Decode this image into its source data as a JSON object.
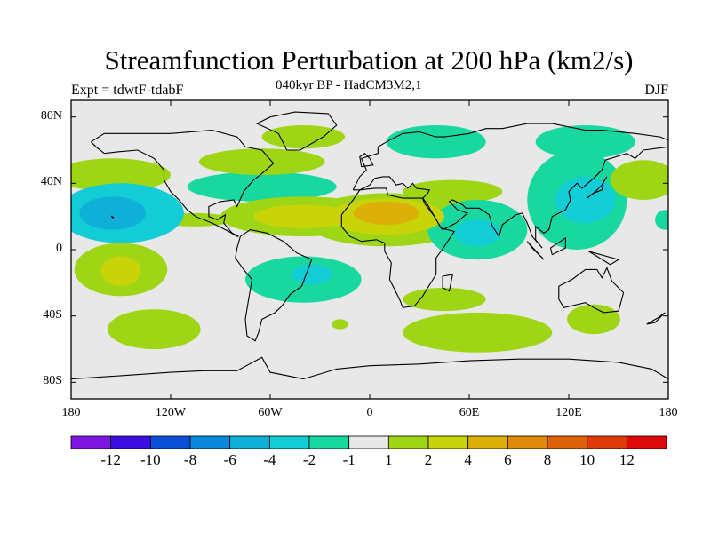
{
  "chart_data": {
    "type": "heatmap",
    "title": "Streamfunction Perturbation at 200 hPa (km2/s)",
    "subtitle": "040kyr BP - HadCM3M2,1",
    "left_label": "Expt = tdwtF-tdabF",
    "right_label": "DJF",
    "x_axis": {
      "range": [
        -180,
        180
      ],
      "ticks": [
        {
          "value": -180,
          "label": "180"
        },
        {
          "value": -120,
          "label": "120W"
        },
        {
          "value": -60,
          "label": "60W"
        },
        {
          "value": 0,
          "label": "0"
        },
        {
          "value": 60,
          "label": "60E"
        },
        {
          "value": 120,
          "label": "120E"
        },
        {
          "value": 180,
          "label": "180"
        }
      ]
    },
    "y_axis": {
      "range": [
        -90,
        90
      ],
      "ticks": [
        {
          "value": 80,
          "label": "80N"
        },
        {
          "value": 40,
          "label": "40N"
        },
        {
          "value": 0,
          "label": "0"
        },
        {
          "value": -40,
          "label": "40S"
        },
        {
          "value": -80,
          "label": "80S"
        }
      ]
    },
    "colorbar": {
      "colors": [
        "#7d16e0",
        "#3a0fe0",
        "#0a4fd6",
        "#0b87db",
        "#0fb0d8",
        "#12ccd6",
        "#18d8a0",
        "#e8e8e8",
        "#9ed615",
        "#c8d408",
        "#dcb008",
        "#de8a0a",
        "#de620a",
        "#de3a0a",
        "#de0a0a"
      ],
      "labels": [
        "-12",
        "-10",
        "-8",
        "-6",
        "-4",
        "-2",
        "-1",
        "1",
        "2",
        "4",
        "6",
        "8",
        "10",
        "12"
      ]
    },
    "anomaly_regions": [
      {
        "lon": -150,
        "lat": 22,
        "rx": 38,
        "ry": 18,
        "level": -2
      },
      {
        "lon": -155,
        "lat": 22,
        "rx": 20,
        "ry": 10,
        "level": -4
      },
      {
        "lon": -155,
        "lat": 45,
        "rx": 35,
        "ry": 10,
        "level": 1
      },
      {
        "lon": -150,
        "lat": -12,
        "rx": 28,
        "ry": 16,
        "level": 1
      },
      {
        "lon": -150,
        "lat": -13,
        "rx": 12,
        "ry": 9,
        "level": 2
      },
      {
        "lon": -130,
        "lat": -48,
        "rx": 28,
        "ry": 12,
        "level": 1
      },
      {
        "lon": -65,
        "lat": 38,
        "rx": 45,
        "ry": 9,
        "level": -1
      },
      {
        "lon": -65,
        "lat": 53,
        "rx": 38,
        "ry": 8,
        "level": 1
      },
      {
        "lon": -40,
        "lat": 68,
        "rx": 25,
        "ry": 7,
        "level": 1
      },
      {
        "lon": -40,
        "lat": 20,
        "rx": 50,
        "ry": 12,
        "level": 1
      },
      {
        "lon": -40,
        "lat": 20,
        "rx": 30,
        "ry": 7,
        "level": 2
      },
      {
        "lon": -40,
        "lat": -18,
        "rx": 35,
        "ry": 14,
        "level": -1
      },
      {
        "lon": -35,
        "lat": -15,
        "rx": 12,
        "ry": 6,
        "level": -2
      },
      {
        "lon": 10,
        "lat": 18,
        "rx": 50,
        "ry": 16,
        "level": 1
      },
      {
        "lon": 10,
        "lat": 20,
        "rx": 35,
        "ry": 11,
        "level": 2
      },
      {
        "lon": 10,
        "lat": 22,
        "rx": 20,
        "ry": 7,
        "level": 4
      },
      {
        "lon": 50,
        "lat": 35,
        "rx": 30,
        "ry": 7,
        "level": 1
      },
      {
        "lon": 40,
        "lat": 65,
        "rx": 30,
        "ry": 10,
        "level": -1
      },
      {
        "lon": 65,
        "lat": 12,
        "rx": 30,
        "ry": 18,
        "level": -1
      },
      {
        "lon": 65,
        "lat": 10,
        "rx": 14,
        "ry": 8,
        "level": -2
      },
      {
        "lon": 45,
        "lat": -30,
        "rx": 25,
        "ry": 7,
        "level": 1
      },
      {
        "lon": 65,
        "lat": -50,
        "rx": 45,
        "ry": 12,
        "level": 1
      },
      {
        "lon": 125,
        "lat": 30,
        "rx": 30,
        "ry": 30,
        "level": -1
      },
      {
        "lon": 130,
        "lat": 30,
        "rx": 18,
        "ry": 14,
        "level": -2
      },
      {
        "lon": 130,
        "lat": 65,
        "rx": 30,
        "ry": 10,
        "level": -1
      },
      {
        "lon": 165,
        "lat": 42,
        "rx": 20,
        "ry": 12,
        "level": 1
      },
      {
        "lon": 135,
        "lat": -42,
        "rx": 16,
        "ry": 9,
        "level": 1
      },
      {
        "lon": 178,
        "lat": 18,
        "rx": 6,
        "ry": 6,
        "level": -1
      },
      {
        "lon": -105,
        "lat": 18,
        "rx": 22,
        "ry": 4,
        "level": 1
      },
      {
        "lon": -18,
        "lat": -45,
        "rx": 5,
        "ry": 3,
        "level": 1
      }
    ]
  }
}
